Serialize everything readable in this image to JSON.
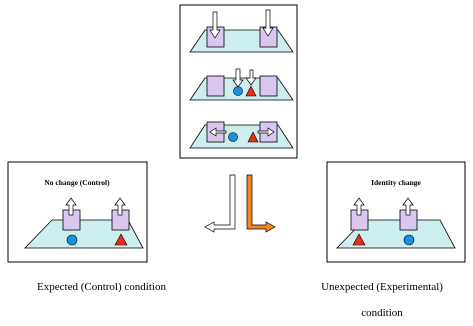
{
  "panels": {
    "control": {
      "title": "No change (Control)"
    },
    "experimental": {
      "title": "Identity change"
    }
  },
  "captions": {
    "expected": "Expected (Control) condition",
    "unexpected": "Unexpected (Experimental) condition"
  }
}
